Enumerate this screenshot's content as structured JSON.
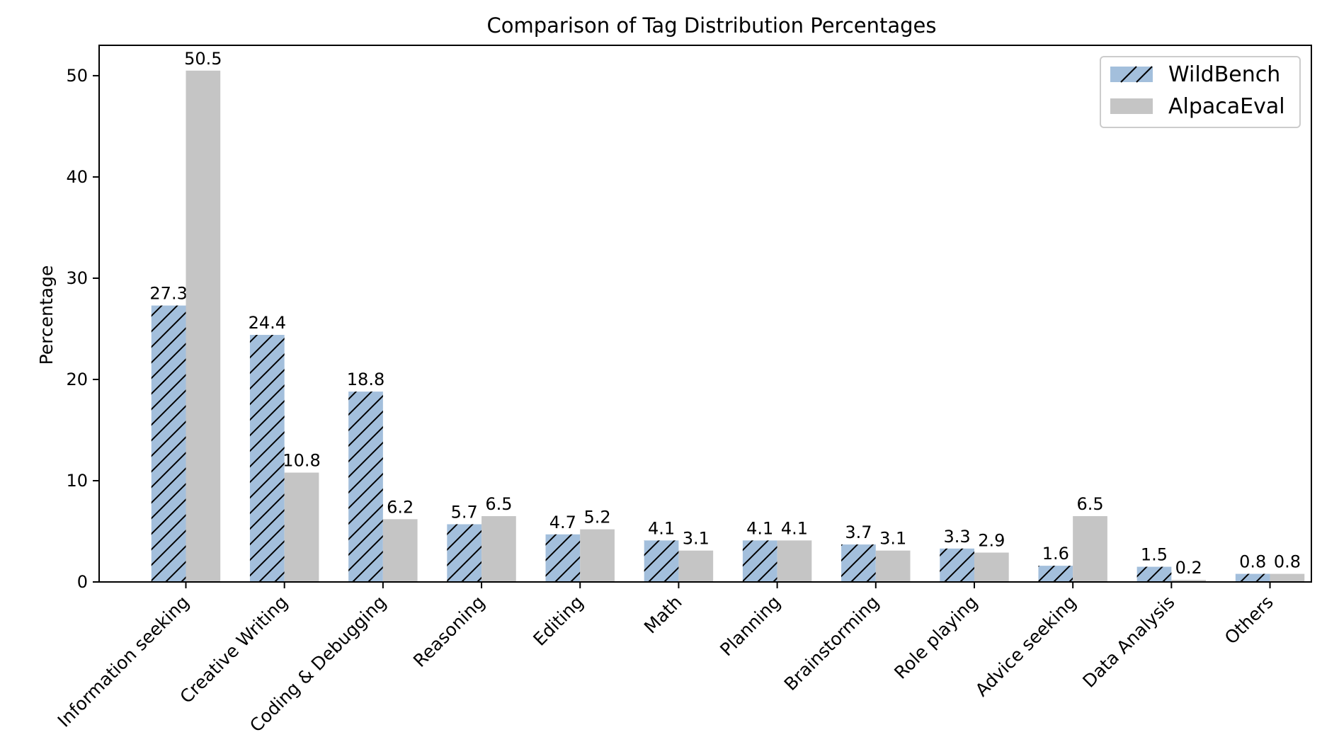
{
  "chart_data": {
    "type": "bar",
    "title": "Comparison of Tag Distribution Percentages",
    "xlabel": "",
    "ylabel": "Percentage",
    "ylim": [
      0,
      53
    ],
    "yticks": [
      0,
      10,
      20,
      30,
      40,
      50
    ],
    "grid": false,
    "legend_position": "top-right",
    "categories": [
      "Information seeking",
      "Creative Writing",
      "Coding & Debugging",
      "Reasoning",
      "Editing",
      "Math",
      "Planning",
      "Brainstorming",
      "Role playing",
      "Advice seeking",
      "Data Analysis",
      "Others"
    ],
    "series": [
      {
        "name": "WildBench",
        "color": "#a3bfdc",
        "hatch": "diagonal",
        "values": [
          27.3,
          24.4,
          18.8,
          5.7,
          4.7,
          4.1,
          4.1,
          3.7,
          3.3,
          1.6,
          1.5,
          0.8
        ],
        "labels": [
          "27.3",
          "24.4",
          "18.8",
          "5.7",
          "4.7",
          "4.1",
          "4.1",
          "3.7",
          "3.3",
          "1.6",
          "1.5",
          "0.8"
        ]
      },
      {
        "name": "AlpacaEval",
        "color": "#c5c5c5",
        "hatch": "none",
        "values": [
          50.5,
          10.8,
          6.2,
          6.5,
          5.2,
          3.1,
          4.1,
          3.1,
          2.9,
          6.5,
          0.2,
          0.8
        ],
        "labels": [
          "50.5",
          "10.8",
          "6.2",
          "6.5",
          "5.2",
          "3.1",
          "4.1",
          "3.1",
          "2.9",
          "6.5",
          "0.2",
          "0.8"
        ]
      }
    ]
  }
}
